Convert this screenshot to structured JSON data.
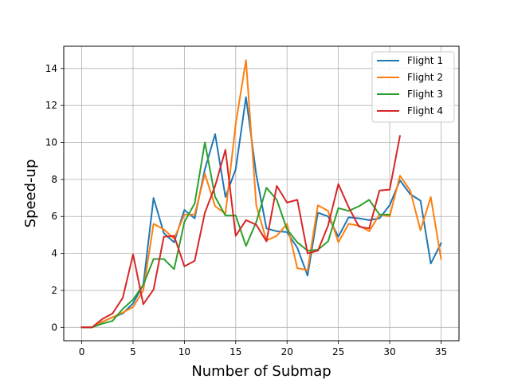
{
  "chart_data": {
    "type": "line",
    "xlabel": "Number of Submap",
    "ylabel": "Speed-up",
    "xlim": [
      -1.75,
      36.75
    ],
    "ylim": [
      -0.72,
      15.2
    ],
    "xticks": [
      0,
      5,
      10,
      15,
      20,
      25,
      30,
      35
    ],
    "yticks": [
      0,
      2,
      4,
      6,
      8,
      10,
      12,
      14
    ],
    "grid": true,
    "legend_position": "top-right",
    "series": [
      {
        "name": "Flight 1",
        "color": "#1f77b4",
        "x": [
          0,
          1,
          2,
          3,
          4,
          5,
          6,
          7,
          8,
          9,
          10,
          11,
          12,
          13,
          14,
          15,
          16,
          17,
          18,
          19,
          20,
          21,
          22,
          23,
          24,
          25,
          26,
          27,
          28,
          29,
          30,
          31,
          32,
          33,
          34,
          35
        ],
        "y": [
          0,
          0,
          0.3,
          0.55,
          0.75,
          1.3,
          2.3,
          7.0,
          5.1,
          4.6,
          6.35,
          5.9,
          8.55,
          10.45,
          7.05,
          8.55,
          12.45,
          8.25,
          5.35,
          5.2,
          5.15,
          4.3,
          2.8,
          6.2,
          6.0,
          4.9,
          5.95,
          5.9,
          5.8,
          5.9,
          6.6,
          7.95,
          7.2,
          6.85,
          3.45,
          4.55
        ]
      },
      {
        "name": "Flight 2",
        "color": "#ff7f0e",
        "x": [
          0,
          1,
          2,
          3,
          4,
          5,
          6,
          7,
          8,
          9,
          10,
          11,
          12,
          13,
          14,
          15,
          16,
          17,
          18,
          19,
          20,
          21,
          22,
          23,
          24,
          25,
          26,
          27,
          28,
          29,
          30,
          31,
          32,
          33,
          34,
          35
        ],
        "y": [
          0,
          0,
          0.3,
          0.55,
          0.8,
          1.1,
          2.0,
          5.6,
          5.3,
          4.8,
          6.1,
          6.1,
          8.3,
          6.55,
          6.15,
          11.0,
          14.45,
          6.6,
          4.7,
          4.95,
          5.6,
          3.2,
          3.1,
          6.6,
          6.3,
          4.6,
          5.6,
          5.5,
          5.2,
          6.1,
          6.0,
          8.2,
          7.4,
          5.25,
          7.05,
          3.7
        ]
      },
      {
        "name": "Flight 3",
        "color": "#2ca02c",
        "x": [
          0,
          1,
          2,
          3,
          4,
          5,
          6,
          7,
          8,
          9,
          10,
          11,
          12,
          13,
          14,
          15,
          16,
          17,
          18,
          19,
          20,
          21,
          22,
          23,
          24,
          25,
          26,
          27,
          28,
          29,
          30,
          31
        ],
        "y": [
          0,
          0,
          0.2,
          0.35,
          1.0,
          1.5,
          2.3,
          3.7,
          3.7,
          3.15,
          5.7,
          6.7,
          10.0,
          7.05,
          6.05,
          6.05,
          4.4,
          5.7,
          7.55,
          6.9,
          5.3,
          4.6,
          4.15,
          4.2,
          4.65,
          6.45,
          6.3,
          6.55,
          6.9,
          6.1,
          6.1,
          null
        ]
      },
      {
        "name": "Flight 4",
        "color": "#d62728",
        "x": [
          0,
          1,
          2,
          3,
          4,
          5,
          6,
          7,
          8,
          9,
          10,
          11,
          12,
          13,
          14,
          15,
          16,
          17,
          18,
          19,
          20,
          21,
          22,
          23,
          24,
          25,
          26,
          27,
          28,
          29,
          30,
          31
        ],
        "y": [
          0,
          0,
          0.45,
          0.75,
          1.6,
          3.95,
          1.25,
          2.05,
          4.9,
          4.95,
          3.3,
          3.6,
          6.2,
          7.65,
          9.6,
          4.95,
          5.8,
          5.55,
          4.65,
          7.65,
          6.75,
          6.9,
          4.0,
          4.15,
          5.5,
          7.75,
          6.5,
          5.45,
          5.35,
          7.4,
          7.45,
          10.35
        ]
      }
    ]
  }
}
